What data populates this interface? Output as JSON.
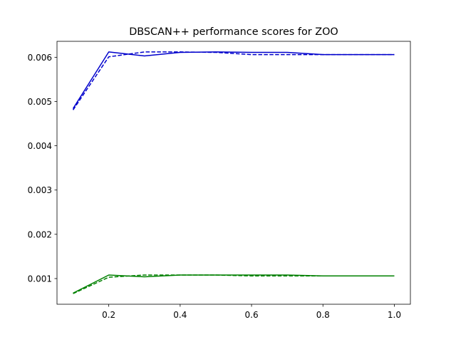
{
  "chart_data": {
    "type": "line",
    "title": "DBSCAN++ performance scores for ZOO",
    "xlabel": "",
    "ylabel": "",
    "xlim": [
      0.055,
      1.045
    ],
    "ylim": [
      0.00042,
      0.00636
    ],
    "x_ticks": [
      {
        "value": 0.2,
        "label": "0.2"
      },
      {
        "value": 0.4,
        "label": "0.4"
      },
      {
        "value": 0.6,
        "label": "0.6"
      },
      {
        "value": 0.8,
        "label": "0.8"
      },
      {
        "value": 1.0,
        "label": "1.0"
      }
    ],
    "y_ticks": [
      {
        "value": 0.001,
        "label": "0.001"
      },
      {
        "value": 0.002,
        "label": "0.002"
      },
      {
        "value": 0.003,
        "label": "0.003"
      },
      {
        "value": 0.004,
        "label": "0.004"
      },
      {
        "value": 0.005,
        "label": "0.005"
      },
      {
        "value": 0.006,
        "label": "0.006"
      }
    ],
    "grid": false,
    "legend": "none",
    "x": [
      0.1,
      0.2,
      0.3,
      0.4,
      0.5,
      0.6,
      0.7,
      0.8,
      0.9,
      1.0
    ],
    "series": [
      {
        "color": "#0000cc",
        "style": "solid",
        "values": [
          0.00484,
          0.00612,
          0.00603,
          0.00611,
          0.00612,
          0.00611,
          0.00611,
          0.00606,
          0.00606,
          0.00606
        ]
      },
      {
        "color": "#0000cc",
        "style": "dashed",
        "values": [
          0.00481,
          0.00601,
          0.00612,
          0.00612,
          0.00611,
          0.00606,
          0.00606,
          0.00606,
          0.00606,
          0.00606
        ]
      },
      {
        "color": "#008000",
        "style": "solid",
        "values": [
          0.00067,
          0.00108,
          0.00104,
          0.00108,
          0.00108,
          0.00108,
          0.00108,
          0.00106,
          0.00106,
          0.00106
        ]
      },
      {
        "color": "#008000",
        "style": "dashed",
        "values": [
          0.00066,
          0.00103,
          0.00108,
          0.00108,
          0.00108,
          0.00106,
          0.00106,
          0.00106,
          0.00106,
          0.00106
        ]
      }
    ]
  }
}
